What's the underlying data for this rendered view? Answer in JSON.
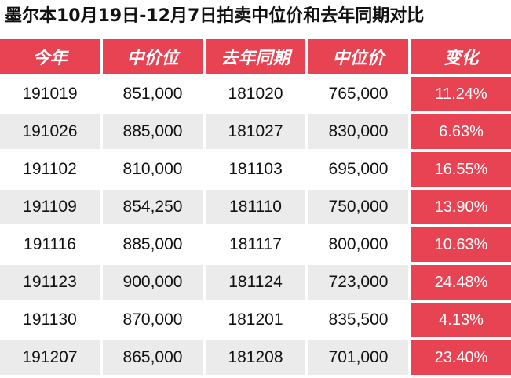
{
  "title": "墨尔本10月19日-12月7日拍卖中位价和去年同期对比",
  "columns": [
    "今年",
    "中价位",
    "去年同期",
    "中位价",
    "变化"
  ],
  "rows": [
    {
      "this_year": "191019",
      "median_this": "851,000",
      "last_year": "181020",
      "median_last": "765,000",
      "change": "11.24%"
    },
    {
      "this_year": "191026",
      "median_this": "885,000",
      "last_year": "181027",
      "median_last": "830,000",
      "change": "6.63%"
    },
    {
      "this_year": "191102",
      "median_this": "810,000",
      "last_year": "181103",
      "median_last": "695,000",
      "change": "16.55%"
    },
    {
      "this_year": "191109",
      "median_this": "854,250",
      "last_year": "181110",
      "median_last": "750,000",
      "change": "13.90%"
    },
    {
      "this_year": "191116",
      "median_this": "885,000",
      "last_year": "181117",
      "median_last": "800,000",
      "change": "10.63%"
    },
    {
      "this_year": "191123",
      "median_this": "900,000",
      "last_year": "181124",
      "median_last": "723,000",
      "change": "24.48%"
    },
    {
      "this_year": "191130",
      "median_this": "870,000",
      "last_year": "181201",
      "median_last": "835,500",
      "change": "4.13%"
    },
    {
      "this_year": "191207",
      "median_this": "865,000",
      "last_year": "181208",
      "median_last": "701,000",
      "change": "23.40%"
    }
  ],
  "colors": {
    "header_bg": "#e84352",
    "change_bg": "#e84352",
    "row_alt_bg": "#ebebeb",
    "text": "#111111"
  }
}
